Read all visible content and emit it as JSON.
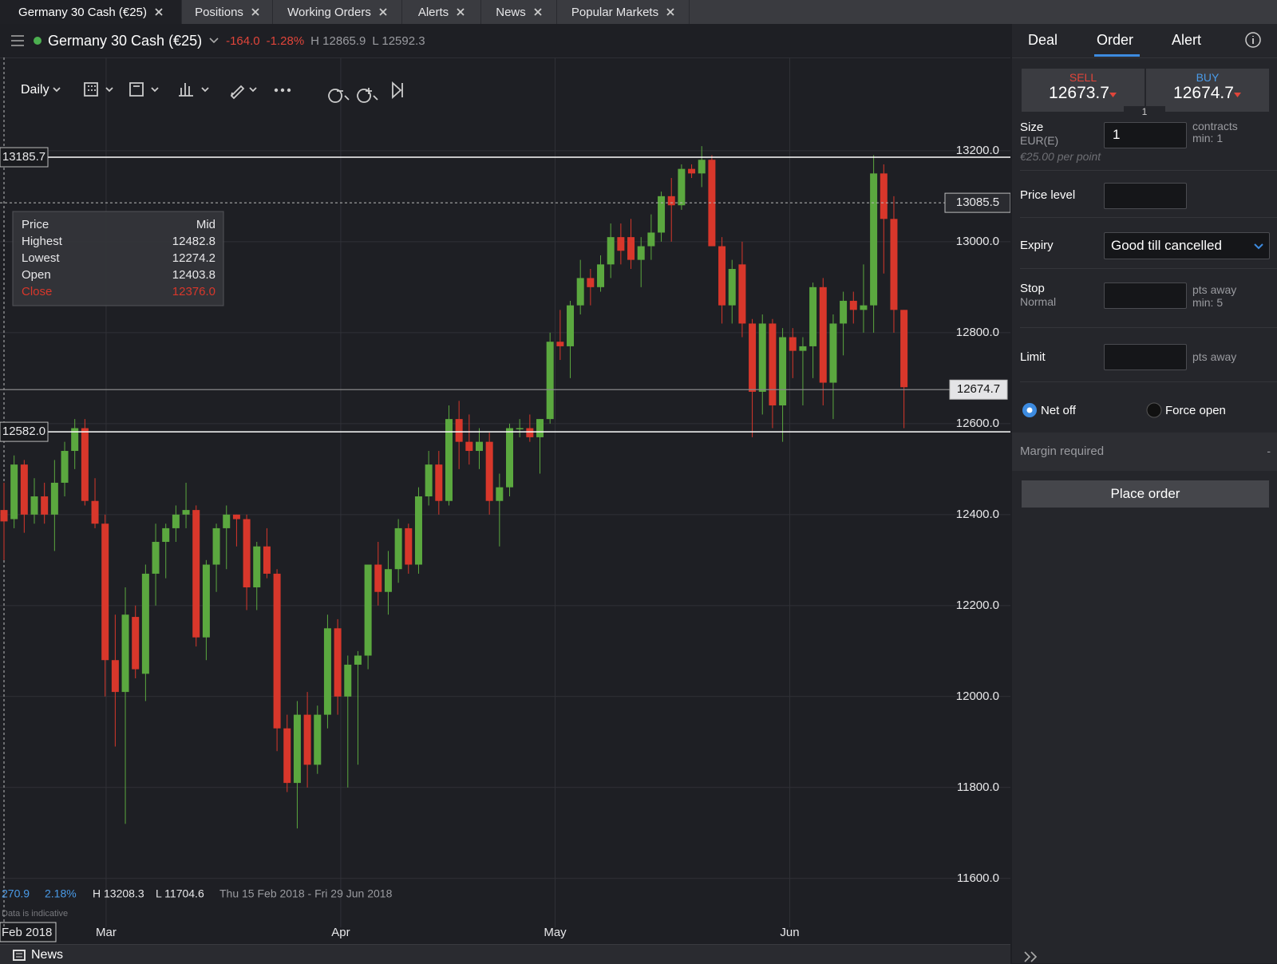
{
  "tabs": [
    "Germany 30 Cash (€25)",
    "Positions",
    "Working Orders",
    "Alerts",
    "News",
    "Popular Markets"
  ],
  "market": {
    "name": "Germany 30 Cash (€25)",
    "change": "-164.0",
    "change_pct": "-1.28%",
    "high": "H 12865.9",
    "low": "L 12592.3"
  },
  "panel_tabs": [
    "Deal",
    "Order",
    "Alert"
  ],
  "toolbar": {
    "interval": "Daily"
  },
  "chart": {
    "type": "candlestick",
    "candles": [
      [
        12410,
        12470,
        12300,
        12385
      ],
      [
        12390,
        12530,
        12370,
        12510
      ],
      [
        12510,
        12520,
        12360,
        12400
      ],
      [
        12400,
        12480,
        12380,
        12440
      ],
      [
        12440,
        12470,
        12380,
        12400
      ],
      [
        12400,
        12520,
        12320,
        12470
      ],
      [
        12470,
        12560,
        12440,
        12540
      ],
      [
        12540,
        12610,
        12500,
        12590
      ],
      [
        12590,
        12610,
        12420,
        12430
      ],
      [
        12430,
        12480,
        12370,
        12380
      ],
      [
        12380,
        12400,
        12000,
        12080
      ],
      [
        12080,
        12180,
        11890,
        12010
      ],
      [
        12010,
        12240,
        11720,
        12180
      ],
      [
        12175,
        12200,
        12040,
        12060
      ],
      [
        12050,
        12290,
        11990,
        12270
      ],
      [
        12270,
        12380,
        12200,
        12340
      ],
      [
        12340,
        12380,
        12260,
        12370
      ],
      [
        12370,
        12420,
        12340,
        12400
      ],
      [
        12400,
        12470,
        12370,
        12410
      ],
      [
        12410,
        12420,
        12110,
        12130
      ],
      [
        12130,
        12300,
        12080,
        12290
      ],
      [
        12290,
        12380,
        12230,
        12370
      ],
      [
        12370,
        12420,
        12280,
        12400
      ],
      [
        12400,
        12400,
        12330,
        12390
      ],
      [
        12390,
        12400,
        12190,
        12240
      ],
      [
        12240,
        12340,
        12190,
        12330
      ],
      [
        12330,
        12370,
        12260,
        12270
      ],
      [
        12270,
        12280,
        11880,
        11930
      ],
      [
        11930,
        11960,
        11790,
        11810
      ],
      [
        11810,
        11990,
        11710,
        11960
      ],
      [
        11960,
        12010,
        11800,
        11850
      ],
      [
        11850,
        11980,
        11830,
        11960
      ],
      [
        11960,
        12180,
        11930,
        12150
      ],
      [
        12150,
        12170,
        11960,
        12000
      ],
      [
        12000,
        12090,
        11800,
        12070
      ],
      [
        12070,
        12100,
        11850,
        12090
      ],
      [
        12090,
        12290,
        12060,
        12290
      ],
      [
        12290,
        12340,
        12200,
        12230
      ],
      [
        12230,
        12320,
        12180,
        12280
      ],
      [
        12280,
        12390,
        12250,
        12370
      ],
      [
        12370,
        12380,
        12270,
        12290
      ],
      [
        12290,
        12460,
        12270,
        12440
      ],
      [
        12440,
        12540,
        12420,
        12510
      ],
      [
        12510,
        12540,
        12400,
        12430
      ],
      [
        12430,
        12640,
        12420,
        12610
      ],
      [
        12610,
        12650,
        12500,
        12560
      ],
      [
        12560,
        12620,
        12510,
        12540
      ],
      [
        12540,
        12590,
        12500,
        12560
      ],
      [
        12560,
        12580,
        12400,
        12430
      ],
      [
        12430,
        12490,
        12330,
        12460
      ],
      [
        12460,
        12600,
        12440,
        12590
      ],
      [
        12590,
        12610,
        12570,
        12590
      ],
      [
        12590,
        12620,
        12560,
        12570
      ],
      [
        12570,
        12610,
        12490,
        12610
      ],
      [
        12610,
        12800,
        12600,
        12780
      ],
      [
        12780,
        12850,
        12740,
        12770
      ],
      [
        12770,
        12870,
        12700,
        12860
      ],
      [
        12860,
        12960,
        12840,
        12920
      ],
      [
        12920,
        12940,
        12860,
        12900
      ],
      [
        12900,
        12970,
        12890,
        12950
      ],
      [
        12950,
        13040,
        12920,
        13010
      ],
      [
        13010,
        13040,
        12950,
        12980
      ],
      [
        13010,
        13050,
        12940,
        12960
      ],
      [
        12960,
        13010,
        12900,
        12990
      ],
      [
        12990,
        13060,
        12960,
        13020
      ],
      [
        13020,
        13110,
        13000,
        13100
      ],
      [
        13100,
        13140,
        13000,
        13080
      ],
      [
        13080,
        13170,
        13070,
        13160
      ],
      [
        13160,
        13170,
        13140,
        13150
      ],
      [
        13150,
        13210,
        13120,
        13180
      ],
      [
        13180,
        13190,
        12990,
        12990
      ],
      [
        12990,
        13010,
        12820,
        12860
      ],
      [
        12860,
        12960,
        12820,
        12940
      ],
      [
        12950,
        13000,
        12790,
        12820
      ],
      [
        12820,
        12830,
        12570,
        12670
      ],
      [
        12670,
        12840,
        12620,
        12820
      ],
      [
        12820,
        12830,
        12590,
        12640
      ],
      [
        12640,
        12810,
        12560,
        12790
      ],
      [
        12790,
        12810,
        12700,
        12760
      ],
      [
        12760,
        12790,
        12640,
        12770
      ],
      [
        12770,
        12910,
        12700,
        12900
      ],
      [
        12900,
        12920,
        12640,
        12690
      ],
      [
        12690,
        12840,
        12610,
        12820
      ],
      [
        12820,
        12890,
        12750,
        12870
      ],
      [
        12870,
        12890,
        12820,
        12850
      ],
      [
        12850,
        12950,
        12800,
        12860
      ],
      [
        12860,
        13190,
        12800,
        13150
      ],
      [
        13150,
        13170,
        12930,
        13050
      ],
      [
        13050,
        13100,
        12800,
        12850
      ],
      [
        12850,
        12850,
        12590,
        12680
      ]
    ],
    "ylim": [
      11540,
      13405
    ],
    "yticks": [
      {
        "value": 11600,
        "label": "11600.0"
      },
      {
        "value": 11800,
        "label": "11800.0"
      },
      {
        "value": 12000,
        "label": "12000.0"
      },
      {
        "value": 12200,
        "label": "12200.0"
      },
      {
        "value": 12400,
        "label": "12400.0"
      },
      {
        "value": 12600,
        "label": "12600.0"
      },
      {
        "value": 12800,
        "label": "12800.0"
      },
      {
        "value": 13000,
        "label": "13000.0"
      },
      {
        "value": 13200,
        "label": "13200.0"
      }
    ],
    "xticks": [
      {
        "value": 2,
        "label": "Feb 2018"
      },
      {
        "value": 10.1,
        "label": "Mar"
      },
      {
        "value": 33.3,
        "label": "Apr"
      },
      {
        "value": 54.5,
        "label": "May"
      },
      {
        "value": 77.7,
        "label": "Jun"
      }
    ],
    "levels": [
      {
        "value": 13185.7,
        "label": "13185.7"
      },
      {
        "value": 12582.0,
        "label": "12582.0"
      }
    ],
    "crosshair": {
      "value": 13085.5,
      "label": "13085.5"
    },
    "current": {
      "value": 12674.7,
      "label": "12674.7"
    },
    "colors": {
      "up": "#5ba83f",
      "down": "#d8372b"
    },
    "grid": true
  },
  "tooltip": {
    "header": [
      "Price",
      "Mid"
    ],
    "rows": [
      [
        "Highest",
        "12482.8"
      ],
      [
        "Lowest",
        "12274.2"
      ],
      [
        "Open",
        "12403.8"
      ],
      [
        "Close",
        "12376.0"
      ]
    ]
  },
  "stats": [
    "270.9",
    "2.18%",
    "H 13208.3",
    "L 11704.6",
    "Thu 15 Feb 2018 - Fri 29 Jun 2018"
  ],
  "note": "Data is indicative",
  "order": {
    "sell_label": "SELL",
    "sell": "12673.7",
    "buy_label": "BUY",
    "buy": "12674.7",
    "spread": "1",
    "size": {
      "label": "Size",
      "currency": "EUR(E)",
      "per_point": "€25.00 per point",
      "value": "1",
      "unit": "contracts",
      "min": "min: 1"
    },
    "price_level": "Price level",
    "expiry": {
      "label": "Expiry",
      "value": "Good till cancelled"
    },
    "stop": {
      "label": "Stop",
      "type": "Normal",
      "unit": "pts away",
      "min": "min: 5"
    },
    "limit": {
      "label": "Limit",
      "unit": "pts away"
    },
    "net_off": "Net off",
    "force_open": "Force open",
    "margin": {
      "label": "Margin required",
      "value": "-"
    },
    "place": "Place order"
  },
  "news": "News"
}
